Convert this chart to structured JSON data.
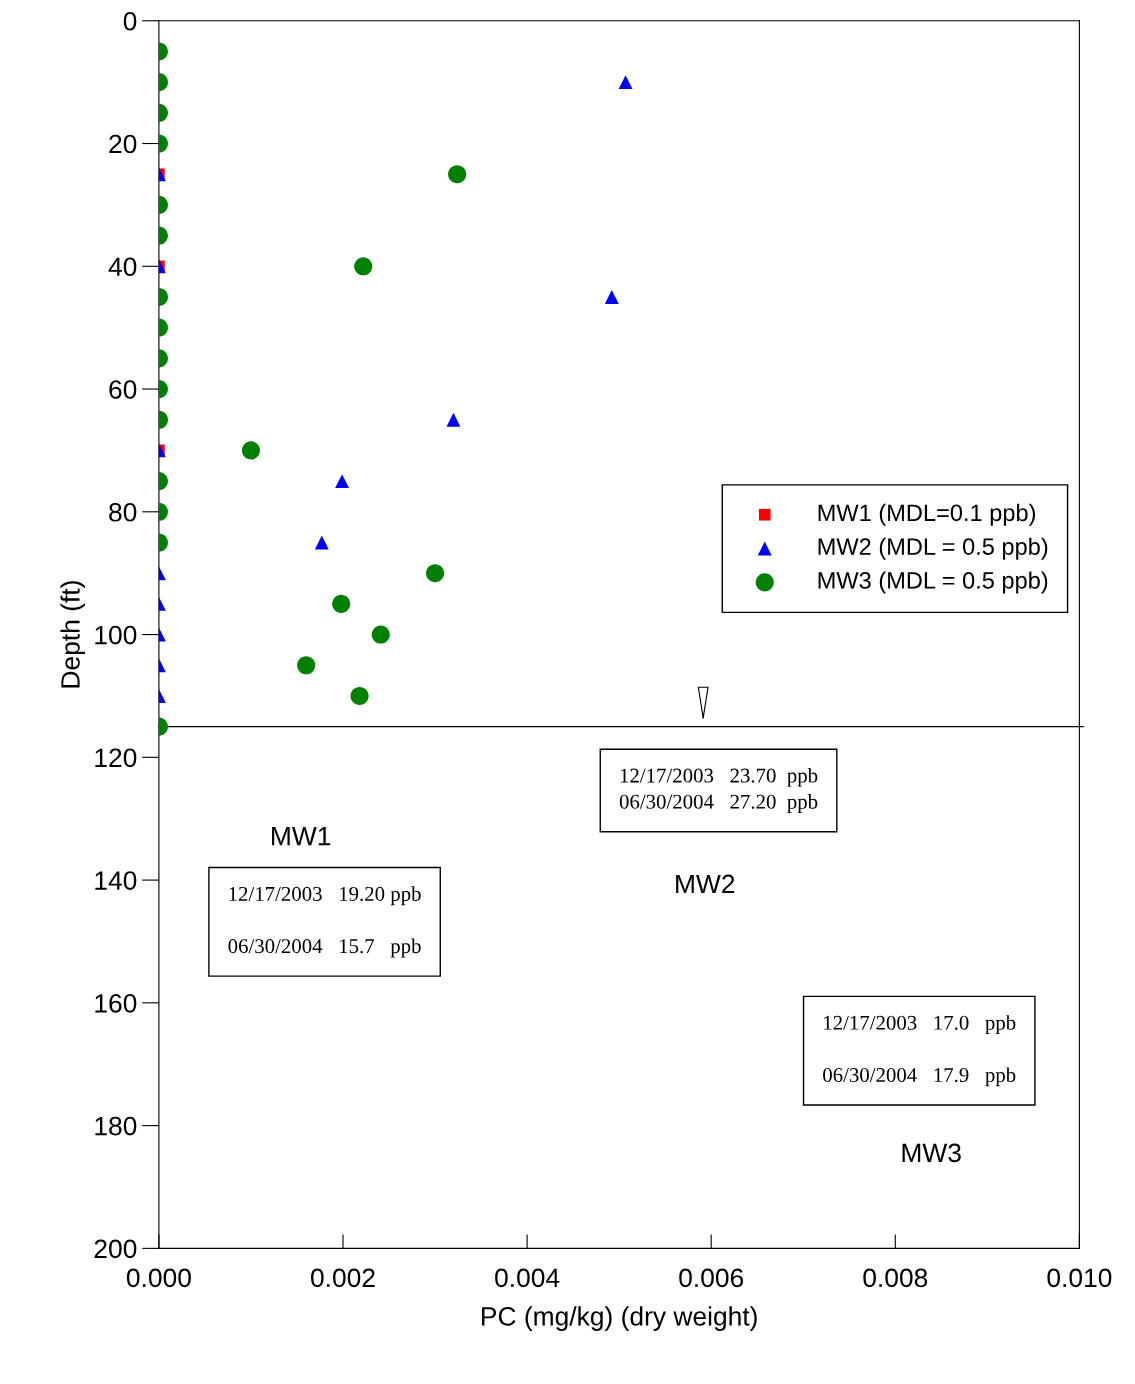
{
  "chart_data": {
    "type": "scatter",
    "xlabel": "PC (mg/kg) (dry weight)",
    "ylabel": "Depth (ft)",
    "xlim": [
      0,
      0.01
    ],
    "xticks": [
      {
        "value": 0,
        "label": "0.000"
      },
      {
        "value": 0.002,
        "label": "0.002"
      },
      {
        "value": 0.004,
        "label": "0.004"
      },
      {
        "value": 0.006,
        "label": "0.006"
      },
      {
        "value": 0.008,
        "label": "0.008"
      },
      {
        "value": 0.01,
        "label": "0.010"
      }
    ],
    "ylim": [
      200,
      0
    ],
    "yticks": [
      0,
      20,
      40,
      60,
      80,
      100,
      120,
      140,
      160,
      180,
      200
    ],
    "grid": false,
    "legend": "right",
    "series": [
      {
        "name": "MW1 (MDL=0.1 ppb)",
        "color": "#ff0000",
        "marker": "square",
        "x": [
          0,
          0,
          0
        ],
        "values": [
          25,
          40,
          70
        ]
      },
      {
        "name": "MW2 (MDL = 0.5 ppb)",
        "color": "#0000ff",
        "marker": "triangle",
        "x": [
          0.00507,
          0,
          0,
          0.00492,
          0.0032,
          0,
          0.00199,
          0.00177,
          0,
          0,
          0,
          0,
          0
        ],
        "values": [
          10,
          25,
          40,
          45,
          65,
          70,
          75,
          85,
          90,
          95,
          100,
          105,
          110
        ]
      },
      {
        "name": "MW3 (MDL = 0.5 ppb)",
        "color": "#008000",
        "marker": "circle",
        "x": [
          0,
          0,
          0,
          0,
          0.00324,
          0,
          0,
          0.00222,
          0,
          0,
          0,
          0,
          0,
          0.001,
          0,
          0,
          0,
          0.003,
          0.00198,
          0.00241,
          0.0016,
          0.00218,
          0
        ],
        "values": [
          5,
          10,
          15,
          20,
          25,
          30,
          35,
          40,
          45,
          50,
          55,
          60,
          65,
          70,
          75,
          80,
          85,
          90,
          95,
          100,
          105,
          110,
          115
        ]
      }
    ],
    "ref_lines": [
      {
        "axis": "y",
        "value": 115,
        "color": "#000000"
      }
    ],
    "annotations": [
      "MW1",
      "12/17/2003   19.20 ppb\n\n06/30/2004   15.7   ppb",
      "12/17/2003   23.70  ppb\n06/30/2004   27.20  ppb",
      "MW2",
      "12/17/2003   17.0   ppb\n\n06/30/2004   17.9   ppb",
      "MW3"
    ]
  }
}
